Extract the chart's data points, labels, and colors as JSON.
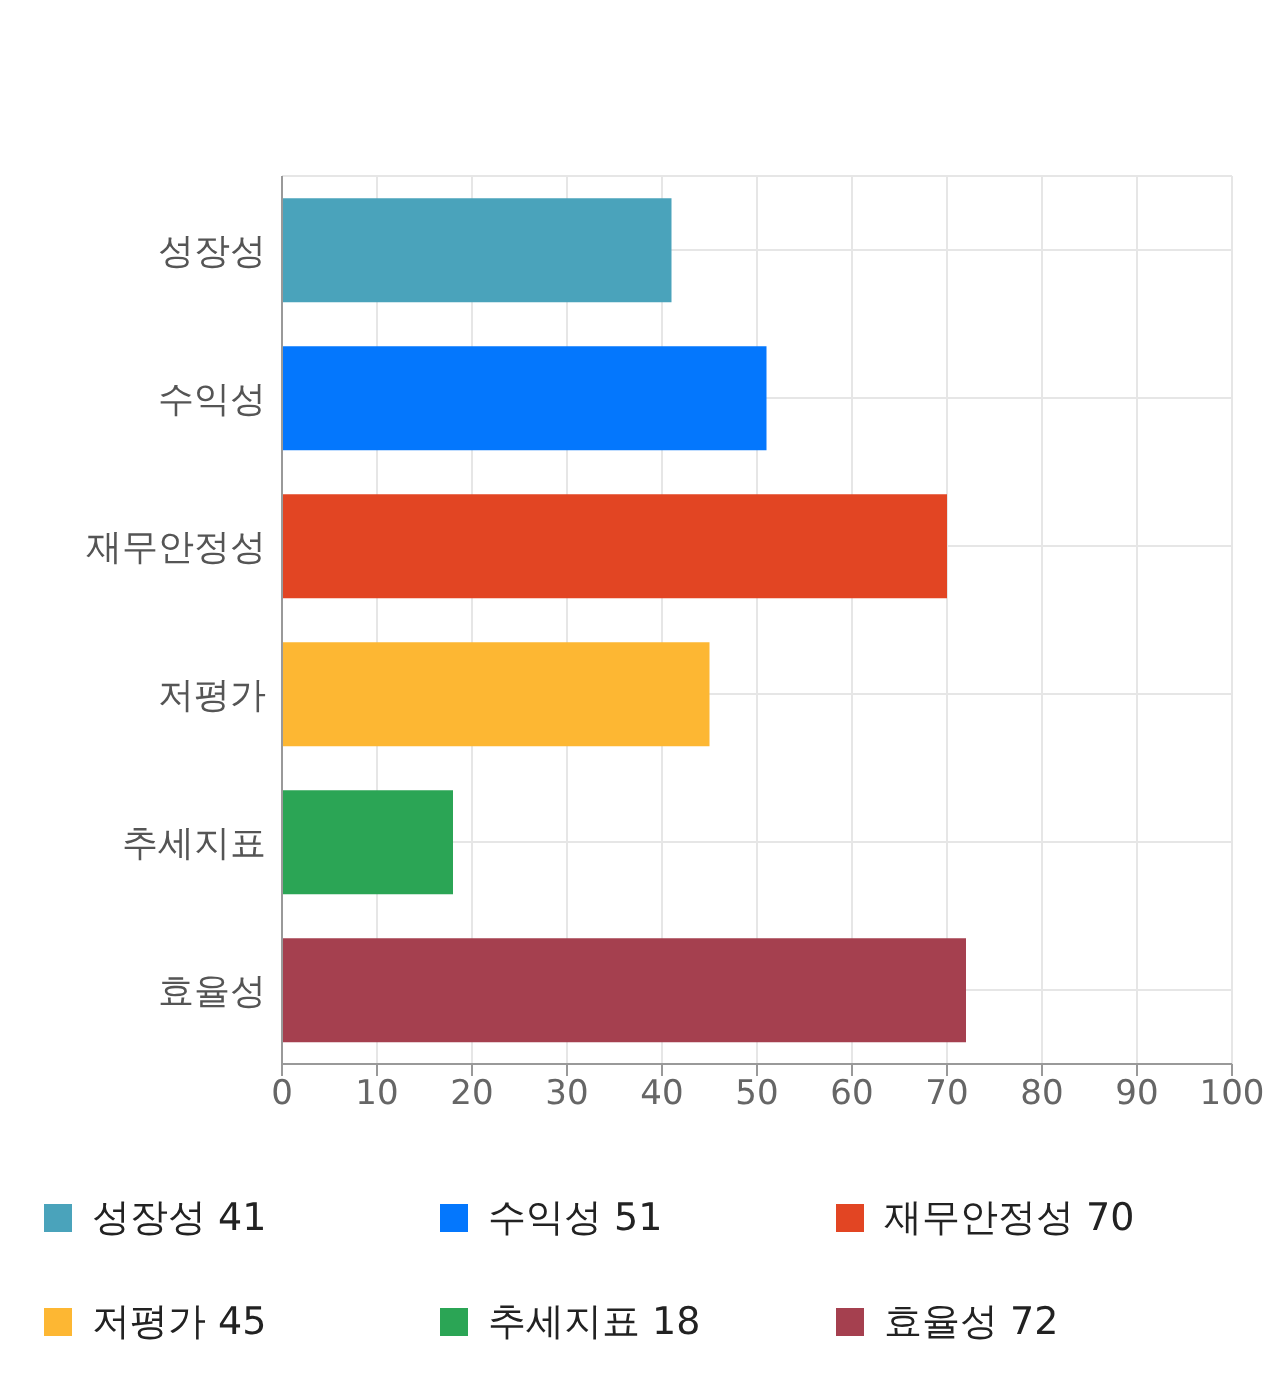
{
  "chart_data": {
    "type": "bar",
    "orientation": "horizontal",
    "stacked": true,
    "categories": [
      "성장성",
      "수익성",
      "재무안정성",
      "저평가",
      "추세지표",
      "효율성"
    ],
    "series": [
      {
        "name": "성장성 41",
        "color": "#4aa3bb",
        "values": [
          41,
          null,
          null,
          null,
          null,
          null
        ]
      },
      {
        "name": "수익성 51",
        "color": "#0477fd",
        "values": [
          null,
          51,
          null,
          null,
          null,
          null
        ]
      },
      {
        "name": "재무안정성 70",
        "color": "#e24523",
        "values": [
          null,
          null,
          70,
          null,
          null,
          null
        ]
      },
      {
        "name": "저평가 45",
        "color": "#fdb733",
        "values": [
          null,
          null,
          null,
          45,
          null,
          null
        ]
      },
      {
        "name": "추세지표 18",
        "color": "#2ba555",
        "values": [
          null,
          null,
          null,
          null,
          18,
          null
        ]
      },
      {
        "name": "효율성 72",
        "color": "#a5404f",
        "values": [
          null,
          null,
          null,
          null,
          null,
          72
        ]
      }
    ],
    "xlim": [
      0,
      100
    ],
    "xticks": [
      0,
      10,
      20,
      30,
      40,
      50,
      60,
      70,
      80,
      90,
      100
    ],
    "grid": true,
    "legend": "bottom"
  }
}
